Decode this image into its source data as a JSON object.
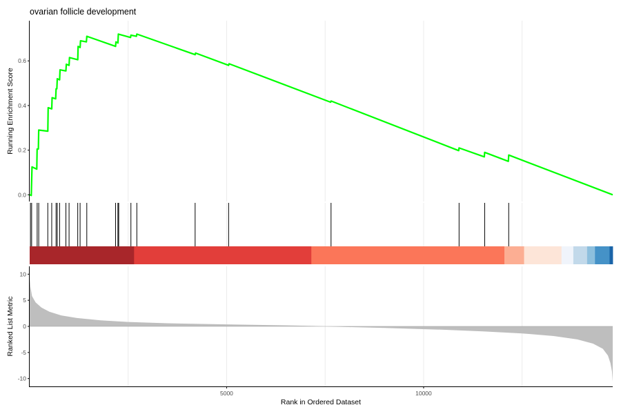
{
  "chart_data": {
    "type": "line",
    "title": "ovarian follicle development",
    "xlabel": "Rank in Ordered Dataset",
    "x_ticks": [
      5000,
      10000
    ],
    "xlim": [
      0,
      14800
    ],
    "grid": "vertical",
    "colors": {
      "running_score": "#00ff00",
      "metric_fill": "#bebebe",
      "axis": "#000000",
      "grid": "#ebebeb"
    },
    "panels": [
      {
        "name": "running-score",
        "ylabel": "Running Enrichment Score",
        "ylim": [
          -0.03,
          0.78
        ],
        "y_ticks": [
          0.0,
          0.2,
          0.4,
          0.6
        ],
        "y_tick_labels": [
          "0.0",
          "0.2",
          "0.4",
          "0.6"
        ],
        "series": [
          {
            "points": [
              [
                0,
                0.0
              ],
              [
                40,
                -0.003
              ],
              [
                60,
                0.125
              ],
              [
                180,
                0.115
              ],
              [
                190,
                0.205
              ],
              [
                220,
                0.205
              ],
              [
                230,
                0.29
              ],
              [
                460,
                0.285
              ],
              [
                470,
                0.39
              ],
              [
                560,
                0.385
              ],
              [
                570,
                0.435
              ],
              [
                660,
                0.43
              ],
              [
                670,
                0.475
              ],
              [
                690,
                0.475
              ],
              [
                700,
                0.52
              ],
              [
                760,
                0.515
              ],
              [
                770,
                0.56
              ],
              [
                920,
                0.555
              ],
              [
                930,
                0.585
              ],
              [
                1000,
                0.58
              ],
              [
                1010,
                0.615
              ],
              [
                1220,
                0.605
              ],
              [
                1230,
                0.665
              ],
              [
                1280,
                0.66
              ],
              [
                1290,
                0.69
              ],
              [
                1440,
                0.685
              ],
              [
                1450,
                0.71
              ],
              [
                2180,
                0.665
              ],
              [
                2190,
                0.685
              ],
              [
                2240,
                0.68
              ],
              [
                2250,
                0.72
              ],
              [
                2560,
                0.705
              ],
              [
                2570,
                0.715
              ],
              [
                2710,
                0.71
              ],
              [
                2720,
                0.72
              ],
              [
                4200,
                0.628
              ],
              [
                4210,
                0.635
              ],
              [
                5050,
                0.58
              ],
              [
                5060,
                0.587
              ],
              [
                7640,
                0.415
              ],
              [
                7650,
                0.42
              ],
              [
                10890,
                0.198
              ],
              [
                10900,
                0.21
              ],
              [
                11540,
                0.17
              ],
              [
                11550,
                0.19
              ],
              [
                12150,
                0.15
              ],
              [
                12160,
                0.178
              ],
              [
                14800,
                0.0
              ]
            ]
          }
        ]
      },
      {
        "name": "gene-hits",
        "hit_positions": [
          20,
          50,
          190,
          230,
          460,
          560,
          670,
          700,
          760,
          920,
          1000,
          1220,
          1280,
          1450,
          2180,
          2240,
          2260,
          2570,
          2720,
          4200,
          5050,
          7650,
          10900,
          11550,
          12160
        ],
        "color_bar": [
          {
            "start": 0,
            "end": 2650,
            "color": "#a8262a"
          },
          {
            "start": 2650,
            "end": 7150,
            "color": "#e23e3a"
          },
          {
            "start": 7150,
            "end": 12050,
            "color": "#fb7659"
          },
          {
            "start": 12050,
            "end": 12550,
            "color": "#fcae93"
          },
          {
            "start": 12550,
            "end": 13500,
            "color": "#fde5d8"
          },
          {
            "start": 13500,
            "end": 13800,
            "color": "#f0f4fb"
          },
          {
            "start": 13800,
            "end": 14150,
            "color": "#c2d9ea"
          },
          {
            "start": 14150,
            "end": 14350,
            "color": "#8dbfdd"
          },
          {
            "start": 14350,
            "end": 14720,
            "color": "#4592c7"
          },
          {
            "start": 14720,
            "end": 14800,
            "color": "#1a64a8"
          }
        ]
      },
      {
        "name": "ranked-metric",
        "ylabel": "Ranked List Metric",
        "ylim": [
          -11.5,
          11.5
        ],
        "y_ticks": [
          10,
          5,
          0,
          -5,
          -10
        ],
        "y_tick_labels": [
          "10",
          "5",
          "0",
          "-5",
          "-10"
        ],
        "series": [
          {
            "points": [
              [
                0,
                9.6
              ],
              [
                20,
                7.6
              ],
              [
                60,
                5.8
              ],
              [
                150,
                4.6
              ],
              [
                300,
                3.6
              ],
              [
                500,
                2.8
              ],
              [
                800,
                2.1
              ],
              [
                1200,
                1.6
              ],
              [
                1800,
                1.15
              ],
              [
                2500,
                0.85
              ],
              [
                3500,
                0.6
              ],
              [
                5000,
                0.38
              ],
              [
                6500,
                0.2
              ],
              [
                7200,
                0.08
              ],
              [
                7700,
                -0.05
              ],
              [
                9000,
                -0.3
              ],
              [
                10500,
                -0.65
              ],
              [
                11500,
                -0.95
              ],
              [
                12500,
                -1.35
              ],
              [
                13300,
                -1.85
              ],
              [
                13900,
                -2.5
              ],
              [
                14300,
                -3.3
              ],
              [
                14550,
                -4.3
              ],
              [
                14680,
                -5.6
              ],
              [
                14740,
                -7.0
              ],
              [
                14780,
                -8.6
              ],
              [
                14800,
                -10.6
              ]
            ]
          }
        ]
      }
    ]
  }
}
